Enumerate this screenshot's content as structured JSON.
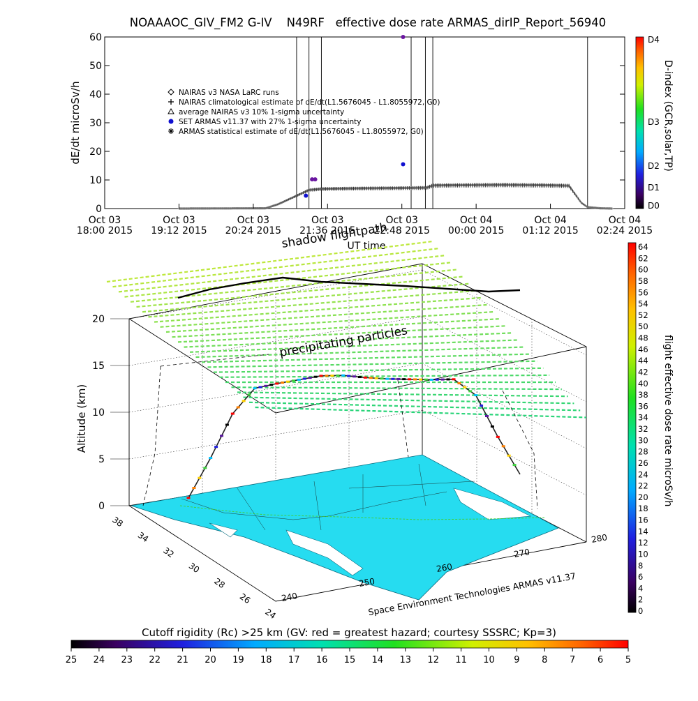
{
  "top_title": "NOAAAOC_GIV_FM2 G-IV    N49RF   effective dose rate ARMAS_dirIP_Report_56940",
  "colors": {
    "background": "#ffffff",
    "dose_grey": "#6a6a6a",
    "armas_blue": "#1010d0",
    "armas_purple": "#6a16a0",
    "ocean": "#26dcf0",
    "rc_grid": "#4cd860"
  },
  "chart_data": [
    {
      "type": "scatter",
      "name": "time-series",
      "ylabel": "dE/dt microSv/h",
      "xlabel": "UT time",
      "ylim": [
        0,
        60
      ],
      "yticks": [
        0,
        10,
        20,
        30,
        40,
        50,
        60
      ],
      "xtick_labels": [
        [
          "Oct 03",
          "18:00 2015"
        ],
        [
          "Oct 03",
          "19:12 2015"
        ],
        [
          "Oct 03",
          "20:24 2015"
        ],
        [
          "Oct 03",
          "21:36 2015"
        ],
        [
          "Oct 03",
          "22:48 2015"
        ],
        [
          "Oct 04",
          "00:00 2015"
        ],
        [
          "Oct 04",
          "01:12 2015"
        ],
        [
          "Oct 04",
          "02:24 2015"
        ]
      ],
      "x_hours_range": [
        18.0,
        26.4
      ],
      "right_axis": {
        "label": "D-index (GCR,solar,TP)",
        "ticks": [
          "D0",
          "D1",
          "D2",
          "D3",
          "D4"
        ]
      },
      "legend": [
        {
          "symbol": "diamond",
          "text": "NAIRAS v3 NASA LaRC runs"
        },
        {
          "symbol": "plus",
          "text": "NAIRAS climatological estimate of dE/dt(L1.5676045 - L1.8055972, G0)"
        },
        {
          "symbol": "triangle",
          "text": "average NAIRAS v3 10% 1-sigma uncertainty"
        },
        {
          "symbol": "dot",
          "text": "SET ARMAS v11.37 with 27% 1-sigma uncertainty"
        },
        {
          "symbol": "asterisk",
          "text": "ARMAS statistical estimate of dE/dt(L1.5676045 - L1.8055972, G0)"
        }
      ],
      "vertical_lines_hours": [
        21.1,
        21.3,
        21.5,
        22.95,
        23.18,
        23.3,
        25.8
      ],
      "climatological_estimate": {
        "x_hours": [
          19.2,
          20.6,
          20.8,
          21.0,
          21.2,
          21.3,
          21.5,
          21.8,
          22.2,
          22.8,
          23.2,
          23.3,
          23.8,
          24.4,
          25.0,
          25.3,
          25.5,
          25.6,
          25.7,
          25.8,
          26.0,
          26.2
        ],
        "values": [
          0.0,
          0.1,
          1.5,
          3.5,
          5.5,
          6.5,
          6.9,
          7.0,
          7.1,
          7.2,
          7.3,
          8.1,
          8.2,
          8.3,
          8.2,
          8.1,
          8.0,
          5.0,
          2.0,
          0.5,
          0.1,
          0.0
        ]
      },
      "armas_points": [
        {
          "x_hours": 21.25,
          "value": 4.5
        },
        {
          "x_hours": 21.35,
          "value": 10.2
        },
        {
          "x_hours": 21.4,
          "value": 10.2
        },
        {
          "x_hours": 22.82,
          "value": 15.5
        },
        {
          "x_hours": 22.82,
          "value": 60
        }
      ]
    },
    {
      "type": "3d-flight-track",
      "name": "altitude-map",
      "zlabel": "Altitude (km)",
      "zticks": [
        0,
        5,
        10,
        15,
        20
      ],
      "lat_ticks": [
        38,
        34,
        32,
        30,
        28,
        26,
        24
      ],
      "lon_ticks": [
        240,
        250,
        260,
        270,
        280
      ],
      "labels": {
        "shadow_flightpath": "shadow flightpath",
        "precipitating_particles": "precipitating particles",
        "credit": "Space Environment Technologies ARMAS v11.37"
      },
      "right_colorbar": {
        "label": "flight effective dose rate microSv/h",
        "ticks": [
          0,
          2,
          4,
          6,
          8,
          10,
          12,
          14,
          16,
          18,
          20,
          22,
          24,
          26,
          28,
          30,
          32,
          34,
          36,
          38,
          40,
          42,
          44,
          46,
          48,
          50,
          52,
          54,
          56,
          58,
          60,
          62,
          64
        ]
      },
      "flight_altitude_profile_km": [
        0.5,
        5,
        10,
        12.8,
        13.2,
        13.5,
        13.8,
        13.7,
        13.3,
        13.0,
        12.8,
        12.6,
        12.5,
        10.5,
        5.5,
        1.0
      ]
    },
    {
      "type": "colorbar",
      "name": "cutoff-rigidity",
      "label": "Cutoff rigidity (Rc) >25 km (GV: red = greatest hazard; courtesy SSSRC; Kp=3)",
      "ticks": [
        25,
        24,
        23,
        22,
        21,
        20,
        19,
        18,
        17,
        16,
        15,
        14,
        13,
        12,
        11,
        10,
        9,
        8,
        7,
        6,
        5
      ]
    }
  ]
}
